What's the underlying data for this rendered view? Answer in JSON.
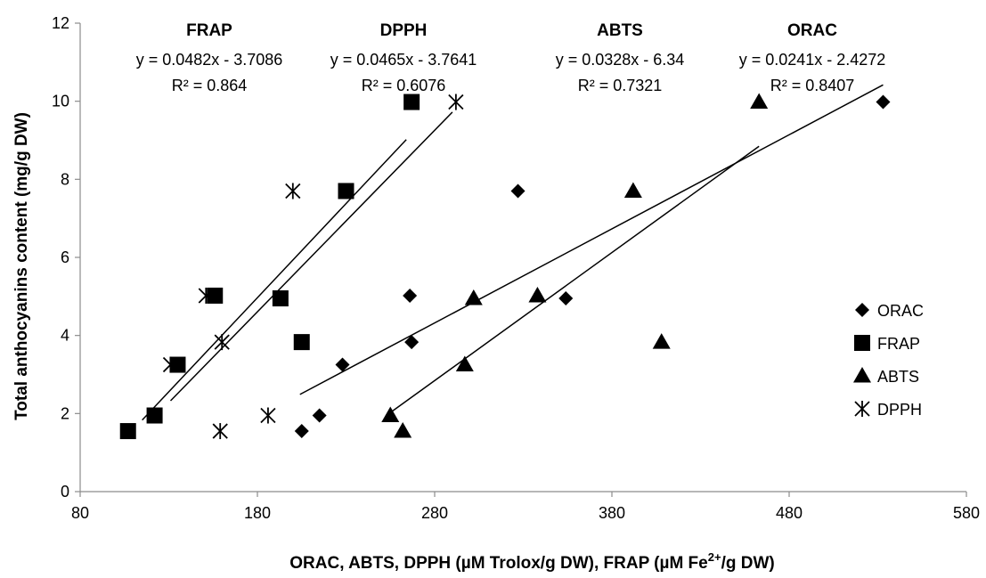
{
  "chart_data": {
    "type": "scatter",
    "title": "",
    "xlabel_parts": [
      "ORAC, ABTS, DPPH (µM Trolox/g DW), FRAP (µM Fe",
      "2+",
      "/g DW)"
    ],
    "ylabel": "Total anthocyanins content (mg/g DW)",
    "xlim": [
      80,
      580
    ],
    "ylim": [
      0,
      12
    ],
    "x_ticks": [
      80,
      180,
      280,
      380,
      480,
      580
    ],
    "y_ticks": [
      0,
      2,
      4,
      6,
      8,
      10,
      12
    ],
    "grid": false,
    "legend_position": "right",
    "series": [
      {
        "name": "ORAC",
        "marker": "diamond",
        "points": [
          [
            205,
            1.55
          ],
          [
            215,
            1.95
          ],
          [
            228,
            3.25
          ],
          [
            266,
            5.02
          ],
          [
            267,
            3.83
          ],
          [
            327,
            7.7
          ],
          [
            354,
            4.95
          ],
          [
            533,
            9.98
          ]
        ]
      },
      {
        "name": "FRAP",
        "marker": "square",
        "points": [
          [
            107,
            1.55
          ],
          [
            122,
            1.95
          ],
          [
            135,
            3.25
          ],
          [
            156,
            5.02
          ],
          [
            193,
            4.95
          ],
          [
            205,
            3.83
          ],
          [
            230,
            7.7
          ],
          [
            267,
            9.98
          ]
        ]
      },
      {
        "name": "ABTS",
        "marker": "triangle",
        "points": [
          [
            255,
            1.95
          ],
          [
            262,
            1.55
          ],
          [
            297,
            3.25
          ],
          [
            302,
            4.95
          ],
          [
            338,
            5.02
          ],
          [
            392,
            7.7
          ],
          [
            408,
            3.83
          ],
          [
            463,
            9.98
          ]
        ]
      },
      {
        "name": "DPPH",
        "marker": "star",
        "points": [
          [
            131,
            3.25
          ],
          [
            151,
            5.02
          ],
          [
            159,
            1.55
          ],
          [
            160,
            3.83
          ],
          [
            186,
            1.95
          ],
          [
            200,
            7.7
          ],
          [
            292,
            9.98
          ]
        ]
      }
    ],
    "trendlines": [
      {
        "series": "FRAP",
        "slope": 0.0482,
        "intercept": -3.7086,
        "x_range": [
          115,
          264
        ]
      },
      {
        "series": "DPPH",
        "slope": 0.0465,
        "intercept": -3.7641,
        "x_range": [
          131,
          290
        ]
      },
      {
        "series": "ABTS",
        "slope": 0.0328,
        "intercept": -6.34,
        "x_range": [
          255,
          463
        ]
      },
      {
        "series": "ORAC",
        "slope": 0.0241,
        "intercept": -2.4272,
        "x_range": [
          204,
          533
        ]
      }
    ],
    "annotations": [
      {
        "title": "FRAP",
        "equation": "y = 0.0482x - 3.7086",
        "r2": "R² = 0.864"
      },
      {
        "title": "DPPH",
        "equation": "y = 0.0465x - 3.7641",
        "r2": "R² = 0.6076"
      },
      {
        "title": "ABTS",
        "equation": "y = 0.0328x - 6.34",
        "r2": "R² = 0.7321"
      },
      {
        "title": "ORAC",
        "equation": "y = 0.0241x - 2.4272",
        "r2": "R² = 0.8407"
      }
    ]
  }
}
